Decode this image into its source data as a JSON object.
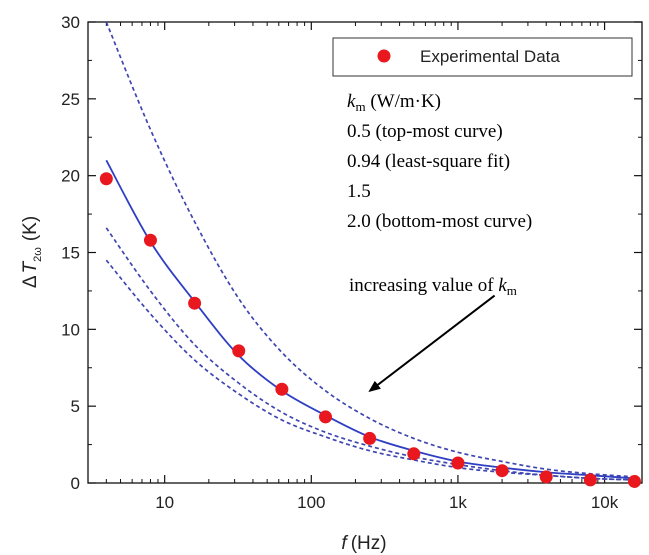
{
  "chart_data": {
    "type": "scatter",
    "x_scale": "log",
    "xlabel": "f (Hz)",
    "xlabel_var": "f",
    "xlabel_unit": "(Hz)",
    "ylabel_prefix": "Δ",
    "ylabel_var": "T",
    "ylabel_sub": "2ω",
    "ylabel_unit": "(K)",
    "xlim": [
      3,
      18000
    ],
    "ylim": [
      0,
      30
    ],
    "x_ticks": [
      10,
      100,
      1000,
      10000
    ],
    "x_tick_labels": [
      "10",
      "100",
      "1k",
      "10k"
    ],
    "y_ticks": [
      0,
      5,
      10,
      15,
      20,
      25,
      30
    ],
    "y_tick_labels": [
      "0",
      "5",
      "10",
      "15",
      "20",
      "25",
      "30"
    ],
    "legend": {
      "position": "top-right",
      "label": "Experimental Data",
      "color": "#e8181e"
    },
    "series": [
      {
        "name": "Experimental Data",
        "kind": "points",
        "color": "#e8181e",
        "x": [
          4,
          8,
          16,
          32,
          63,
          125,
          250,
          500,
          1000,
          2000,
          4000,
          8000,
          16000
        ],
        "y": [
          19.8,
          15.8,
          11.7,
          8.6,
          6.1,
          4.3,
          2.9,
          1.9,
          1.3,
          0.8,
          0.4,
          0.2,
          0.1
        ]
      },
      {
        "kind": "fit",
        "k_m": "0.94",
        "style": "solid",
        "color": "#2f3fc4",
        "x": [
          4,
          8,
          16,
          32,
          63,
          125,
          250,
          500,
          1000,
          2000,
          4000,
          8000,
          16000
        ],
        "y": [
          21.0,
          15.7,
          11.8,
          8.3,
          6.0,
          4.4,
          3.0,
          2.1,
          1.4,
          1.0,
          0.7,
          0.5,
          0.3
        ]
      },
      {
        "kind": "model",
        "k_m": "0.5",
        "style": "dashed",
        "color": "#3f46b0",
        "x": [
          4,
          8,
          16,
          32,
          63,
          125,
          250,
          500,
          1000,
          2000,
          4000,
          8000,
          16000
        ],
        "y": [
          30.0,
          23.0,
          17.0,
          12.0,
          8.5,
          6.0,
          4.2,
          2.9,
          2.0,
          1.4,
          0.9,
          0.6,
          0.4
        ]
      },
      {
        "kind": "model",
        "k_m": "1.5",
        "style": "dashed",
        "color": "#3f46b0",
        "x": [
          4,
          8,
          16,
          32,
          63,
          125,
          250,
          500,
          1000,
          2000,
          4000,
          8000,
          16000
        ],
        "y": [
          16.6,
          12.5,
          9.0,
          6.5,
          4.6,
          3.3,
          2.4,
          1.7,
          1.2,
          0.8,
          0.5,
          0.3,
          0.2
        ]
      },
      {
        "kind": "model",
        "k_m": "2.0",
        "style": "dashed",
        "color": "#3f46b0",
        "x": [
          4,
          8,
          16,
          32,
          63,
          125,
          250,
          500,
          1000,
          2000,
          4000,
          8000,
          16000
        ],
        "y": [
          14.5,
          11.0,
          8.0,
          5.8,
          4.1,
          3.0,
          2.1,
          1.5,
          1.0,
          0.7,
          0.5,
          0.3,
          0.2
        ]
      }
    ],
    "annotations": {
      "km_header_var": "k",
      "km_header_sub": "m",
      "km_header_unit": " (W/m·K)",
      "km_lines": [
        "0.5 (top-most curve)",
        "0.94 (least-square fit)",
        "1.5",
        "2.0 (bottom-most curve)"
      ],
      "arrow_text": "increasing value of ",
      "arrow_var": "k",
      "arrow_sub": "m",
      "arrow_from": [
        3.25,
        12.2
      ],
      "arrow_to": [
        2.4,
        6.0
      ]
    }
  }
}
